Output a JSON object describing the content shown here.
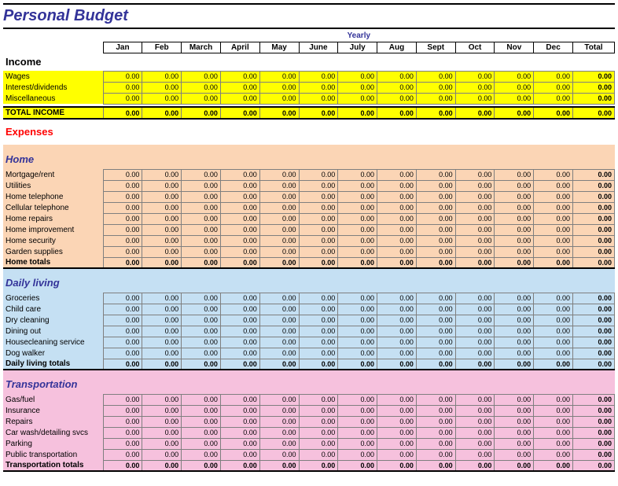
{
  "title": "Personal Budget",
  "periodLabel": "Yearly",
  "months": [
    "Jan",
    "Feb",
    "March",
    "April",
    "May",
    "June",
    "July",
    "Aug",
    "Sept",
    "Oct",
    "Nov",
    "Dec"
  ],
  "totalLabel": "Total",
  "zero": "0.00",
  "colors": {
    "title": "#333399",
    "expenses": "#ff0000",
    "bg_yellow": "#ffff00",
    "bg_peach": "#fbd5b5",
    "bg_ltblue": "#c5e0f3",
    "bg_pink": "#f6c1dd",
    "cell_border": "#7f7f7f"
  },
  "income": {
    "label": "Income",
    "rows": [
      "Wages",
      "Interest/dividends",
      "Miscellaneous"
    ],
    "totalLabel": "TOTAL INCOME"
  },
  "expenses": {
    "label": "Expenses",
    "sections": [
      {
        "key": "home",
        "label": "Home",
        "bg": "bg-peach",
        "rows": [
          "Mortgage/rent",
          "Utilities",
          "Home telephone",
          "Cellular telephone",
          "Home repairs",
          "Home improvement",
          "Home security",
          "Garden supplies"
        ],
        "totalLabel": "Home totals"
      },
      {
        "key": "daily",
        "label": "Daily living",
        "bg": "bg-ltblue",
        "rows": [
          "Groceries",
          "Child care",
          "Dry cleaning",
          "Dining out",
          "Housecleaning service",
          "Dog walker"
        ],
        "totalLabel": "Daily living totals"
      },
      {
        "key": "transport",
        "label": "Transportation",
        "bg": "bg-pink",
        "rows": [
          "Gas/fuel",
          "Insurance",
          "Repairs",
          "Car wash/detailing svcs",
          "Parking",
          "Public transportation"
        ],
        "totalLabel": "Transportation totals"
      }
    ]
  }
}
